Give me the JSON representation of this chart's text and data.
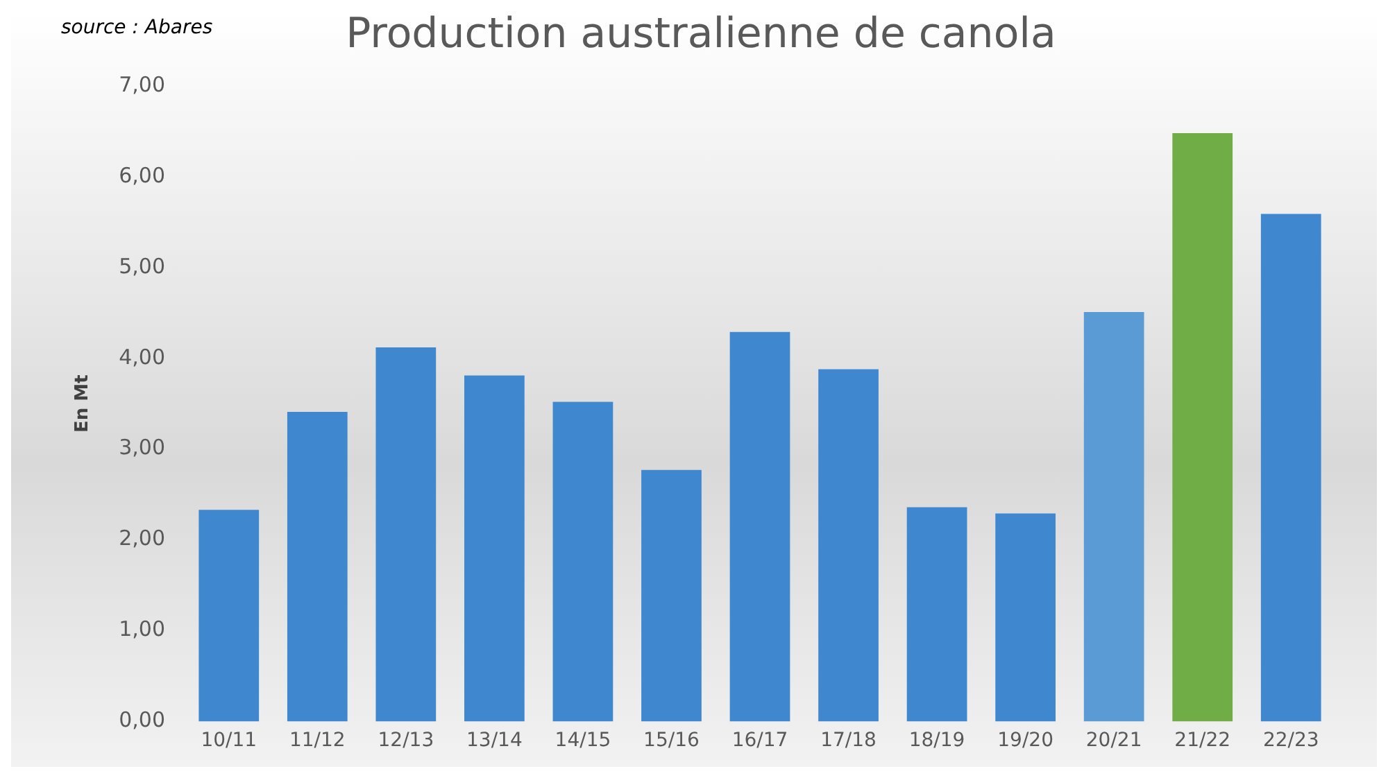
{
  "chart_data": {
    "type": "bar",
    "title": "Production australienne de canola",
    "ylabel": "En Mt",
    "annotations": [
      "source : Abares"
    ],
    "categories": [
      "10/11",
      "11/12",
      "12/13",
      "13/14",
      "14/15",
      "15/16",
      "16/17",
      "17/18",
      "18/19",
      "19/20",
      "20/21",
      "21/22",
      "22/23"
    ],
    "values": [
      2.33,
      3.41,
      4.12,
      3.81,
      3.52,
      2.77,
      4.29,
      3.88,
      2.36,
      2.29,
      4.51,
      6.48,
      5.59
    ],
    "colors": [
      "#3f87cf",
      "#3f87cf",
      "#3f87cf",
      "#3f87cf",
      "#3f87cf",
      "#3f87cf",
      "#3f87cf",
      "#3f87cf",
      "#3f87cf",
      "#3f87cf",
      "#5b9bd5",
      "#70ad47",
      "#3f87cf"
    ],
    "ylim": [
      0,
      7
    ],
    "yticks": [
      {
        "value": 0,
        "label": "0,00"
      },
      {
        "value": 1,
        "label": "1,00"
      },
      {
        "value": 2,
        "label": "2,00"
      },
      {
        "value": 3,
        "label": "3,00"
      },
      {
        "value": 4,
        "label": "4,00"
      },
      {
        "value": 5,
        "label": "5,00"
      },
      {
        "value": 6,
        "label": "6,00"
      },
      {
        "value": 7,
        "label": "7,00"
      }
    ],
    "grid": false,
    "legend": false
  }
}
